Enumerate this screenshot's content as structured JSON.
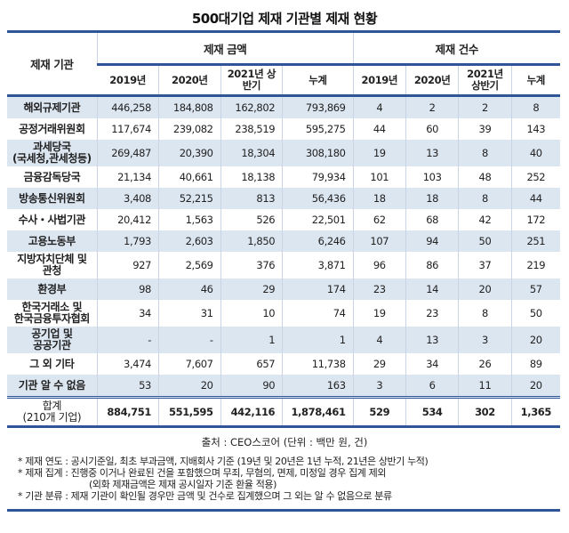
{
  "title": "500대기업 제재 기관별 제재 현황",
  "table": {
    "label_header": "제재 기관",
    "group_amount": "제재 금액",
    "group_count": "제재 건수",
    "sub_headers": [
      "2019년",
      "2020년",
      "2021년 상반기",
      "누계",
      "2019년",
      "2020년",
      "2021년 상반기",
      "누계"
    ],
    "rows": [
      {
        "label": "해외규제기관",
        "values": [
          "446,258",
          "184,808",
          "162,802",
          "793,869",
          "4",
          "2",
          "2",
          "8"
        ]
      },
      {
        "label": "공정거래위원회",
        "values": [
          "117,674",
          "239,082",
          "238,519",
          "595,275",
          "44",
          "60",
          "39",
          "143"
        ]
      },
      {
        "label": "과세당국\n(국세청,관세청등)",
        "values": [
          "269,487",
          "20,390",
          "18,304",
          "308,180",
          "19",
          "13",
          "8",
          "40"
        ]
      },
      {
        "label": "금융감독당국",
        "values": [
          "21,134",
          "40,661",
          "18,138",
          "79,934",
          "101",
          "103",
          "48",
          "252"
        ]
      },
      {
        "label": "방송통신위원회",
        "values": [
          "3,408",
          "52,215",
          "813",
          "56,436",
          "18",
          "18",
          "8",
          "44"
        ]
      },
      {
        "label": "수사・사법기관",
        "values": [
          "20,412",
          "1,563",
          "526",
          "22,501",
          "62",
          "68",
          "42",
          "172"
        ]
      },
      {
        "label": "고용노동부",
        "values": [
          "1,793",
          "2,603",
          "1,850",
          "6,246",
          "107",
          "94",
          "50",
          "251"
        ]
      },
      {
        "label": "지방자치단체 및\n관청",
        "values": [
          "927",
          "2,569",
          "376",
          "3,871",
          "96",
          "86",
          "37",
          "219"
        ]
      },
      {
        "label": "환경부",
        "values": [
          "98",
          "46",
          "29",
          "174",
          "23",
          "14",
          "20",
          "57"
        ]
      },
      {
        "label": "한국거래소 및\n한국금융투자협회",
        "values": [
          "34",
          "31",
          "10",
          "74",
          "19",
          "23",
          "8",
          "50"
        ]
      },
      {
        "label": "공기업 및\n공공기관",
        "values": [
          "-",
          "-",
          "1",
          "1",
          "4",
          "13",
          "3",
          "20"
        ]
      },
      {
        "label": "그 외 기타",
        "values": [
          "3,474",
          "7,607",
          "657",
          "11,738",
          "29",
          "34",
          "26",
          "89"
        ]
      },
      {
        "label": "기관 알 수 없음",
        "values": [
          "53",
          "20",
          "90",
          "163",
          "3",
          "6",
          "11",
          "20"
        ]
      }
    ],
    "total": {
      "label": "합계\n(210개 기업)",
      "values": [
        "884,751",
        "551,595",
        "442,116",
        "1,878,461",
        "529",
        "534",
        "302",
        "1,365"
      ]
    }
  },
  "source": "출처 : CEO스코어 (단위 :  백만 원, 건)",
  "notes": [
    "* 제재 연도 : 공시기준일, 최초 부과금액, 지배회사 기준 (19년 및 20년은 1년 누적, 21년은 상반기 누적)",
    "* 제재 집계 : 진행중 이거나 완료된 건을 포함했으며 무죄, 무혐의, 면제, 미정일 경우 집계 제외",
    "(외화 제재금액은 제재 공시일자 기준 환율 적용)",
    "* 기관 분류 : 제재 기관이 확인될 경우만 금액 및 건수로 집계했으며 그 외는 알 수 없음으로 분류"
  ],
  "colors": {
    "rule": "#2f5597",
    "alt_row": "#dce6f1"
  }
}
